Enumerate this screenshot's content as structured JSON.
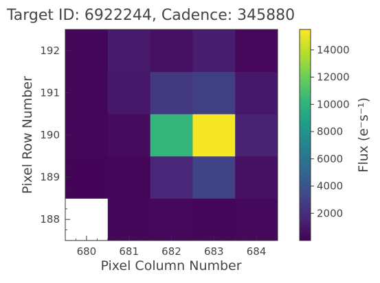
{
  "chart_data": {
    "type": "heatmap",
    "title": "Target ID: 6922244, Cadence: 345880",
    "xlabel": "Pixel Column Number",
    "ylabel": "Pixel Row Number",
    "x_categories": [
      "680",
      "681",
      "682",
      "683",
      "684"
    ],
    "y_categories": [
      "188",
      "189",
      "190",
      "191",
      "192"
    ],
    "values": [
      [
        null,
        250,
        300,
        250,
        350
      ],
      [
        150,
        200,
        1700,
        3100,
        700
      ],
      [
        200,
        500,
        10100,
        15300,
        1500
      ],
      [
        200,
        1000,
        2600,
        2900,
        1000
      ],
      [
        200,
        1100,
        700,
        1300,
        300
      ]
    ],
    "colorbar": {
      "label": "Flux (e⁻s⁻¹)",
      "ticks": [
        "2000",
        "4000",
        "6000",
        "8000",
        "10000",
        "12000",
        "14000"
      ],
      "range": [
        0,
        15500
      ],
      "colormap": "viridis"
    },
    "colors": {
      "viridis": [
        "#440154",
        "#482878",
        "#3e4a89",
        "#31688e",
        "#26828e",
        "#1f9e89",
        "#35b779",
        "#6ece58",
        "#b5de2b",
        "#fde725"
      ],
      "missing": "#ffffff"
    }
  }
}
